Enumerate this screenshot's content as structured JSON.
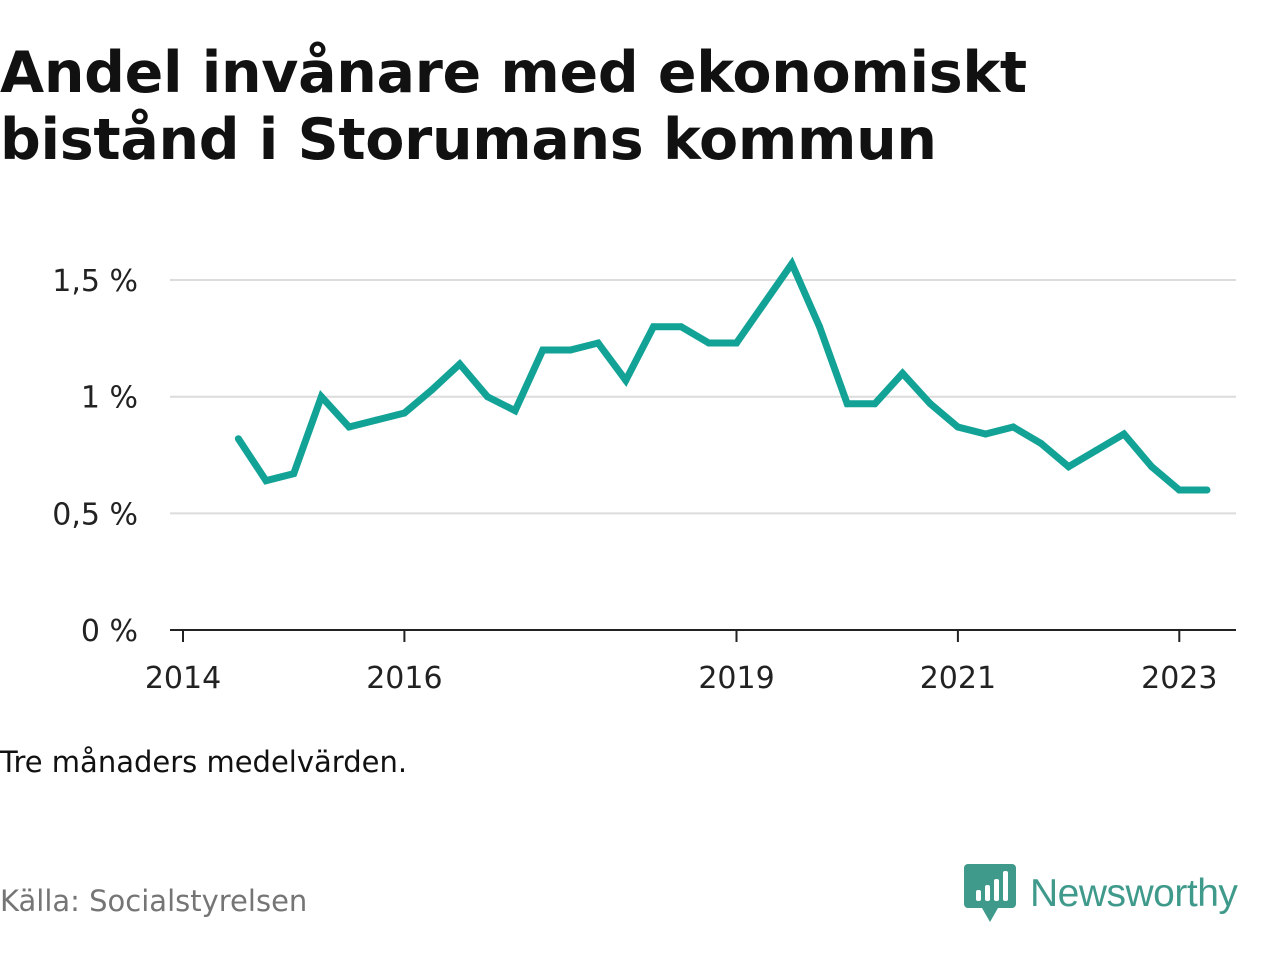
{
  "title_lines": [
    "Andel invånare med ekonomiskt",
    "bistånd i Storumans kommun"
  ],
  "caption": "Tre månaders medelvärden.",
  "source": "Källa: Socialstyrelsen",
  "brand": {
    "name": "Newsworthy",
    "icon": "newsworthy-logo-icon",
    "color": "#3f9a8b"
  },
  "chart_data": {
    "type": "line",
    "title": "Andel invånare med ekonomiskt bistånd i Storumans kommun",
    "xlabel": "",
    "ylabel": "",
    "x_ticks": [
      "2014",
      "2016",
      "2019",
      "2021",
      "2023"
    ],
    "y_ticks": [
      "0 %",
      "0,5 %",
      "1 %",
      "1,5 %"
    ],
    "y_tick_values": [
      0,
      0.5,
      1.0,
      1.5
    ],
    "ylim": [
      0,
      1.5
    ],
    "grid": true,
    "line_color": "#12a396",
    "series": [
      {
        "x": [
          "2014-07",
          "2014-10",
          "2015-01",
          "2015-04",
          "2015-07",
          "2015-10",
          "2016-01",
          "2016-04",
          "2016-07",
          "2016-10",
          "2017-01",
          "2017-04",
          "2017-07",
          "2017-10",
          "2018-01",
          "2018-04",
          "2018-07",
          "2018-10",
          "2019-01",
          "2019-04",
          "2019-07",
          "2019-10",
          "2020-01",
          "2020-04",
          "2020-07",
          "2020-10",
          "2021-01",
          "2021-04",
          "2021-07",
          "2021-10",
          "2022-01",
          "2022-04",
          "2022-07",
          "2022-10",
          "2023-01",
          "2023-04"
        ],
        "values": [
          0.82,
          0.64,
          0.67,
          1.0,
          0.87,
          0.9,
          0.93,
          1.03,
          1.14,
          1.0,
          0.94,
          1.2,
          1.2,
          1.23,
          1.07,
          1.3,
          1.3,
          1.23,
          1.23,
          1.4,
          1.57,
          1.3,
          0.97,
          0.97,
          1.1,
          0.97,
          0.87,
          0.84,
          0.87,
          0.8,
          0.7,
          0.77,
          0.84,
          0.7,
          0.6,
          0.6
        ]
      }
    ]
  }
}
